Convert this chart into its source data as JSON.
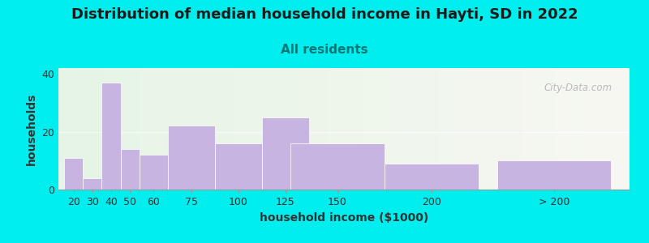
{
  "title": "Distribution of median household income in Hayti, SD in 2022",
  "subtitle": "All residents",
  "xlabel": "household income ($1000)",
  "ylabel": "households",
  "background_color": "#00EEEE",
  "bar_color": "#c8b4e0",
  "bar_edgecolor": "#ffffff",
  "watermark": "City-Data.com",
  "categories": [
    "20",
    "30",
    "40",
    "50",
    "60",
    "75",
    "100",
    "125",
    "150",
    "200",
    "> 200"
  ],
  "values": [
    11,
    4,
    37,
    14,
    12,
    22,
    16,
    25,
    16,
    9,
    10
  ],
  "bar_widths": [
    10,
    10,
    10,
    10,
    15,
    25,
    25,
    25,
    50,
    50,
    60
  ],
  "bar_lefts": [
    15,
    25,
    35,
    45,
    55,
    70,
    95,
    120,
    135,
    185,
    245
  ],
  "xlim_left": 12,
  "xlim_right": 315,
  "ylim": [
    0,
    42
  ],
  "yticks": [
    0,
    20,
    40
  ],
  "title_fontsize": 13,
  "subtitle_fontsize": 11,
  "label_fontsize": 10,
  "tick_fontsize": 9,
  "title_color": "#1a1a1a",
  "subtitle_color": "#007777",
  "axis_text_color": "#333333",
  "watermark_color": "#b0b0b0"
}
